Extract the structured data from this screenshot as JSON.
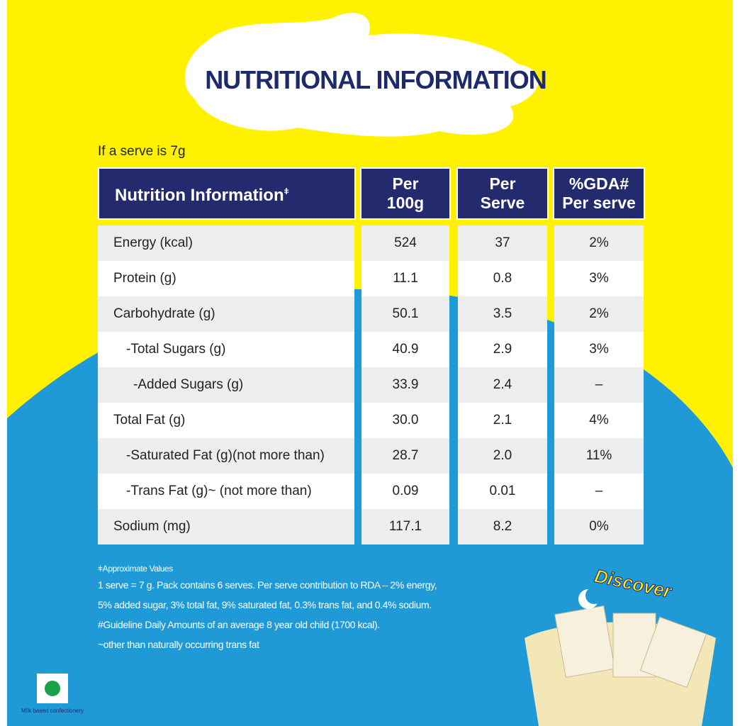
{
  "title": "NUTRITIONAL INFORMATION",
  "serve_note": "If a serve is 7g",
  "table": {
    "header": {
      "nutrient": "Nutrition Information",
      "nutrient_mark": "ǂ",
      "per_100g": [
        "Per",
        "100g"
      ],
      "per_serve": [
        "Per",
        "Serve"
      ],
      "gda": [
        "%GDA#",
        "Per serve"
      ]
    },
    "rows": [
      [
        "Energy (kcal)",
        "524",
        "37",
        "2%"
      ],
      [
        "Protein (g)",
        "11.1",
        "0.8",
        "3%"
      ],
      [
        "Carbohydrate (g)",
        "50.1",
        "3.5",
        "2%"
      ],
      [
        "-Total Sugars (g)",
        "40.9",
        "2.9",
        "3%"
      ],
      [
        "-Added Sugars (g)",
        "33.9",
        "2.4",
        "–"
      ],
      [
        "Total Fat (g)",
        "30.0",
        "2.1",
        "4%"
      ],
      [
        "-Saturated Fat (g)(not more than)",
        "28.7",
        "2.0",
        "11%"
      ],
      [
        "-Trans Fat (g)~ (not more than)",
        "0.09",
        "0.01",
        "–"
      ],
      [
        "Sodium (mg)",
        "117.1",
        "8.2",
        "0%"
      ]
    ]
  },
  "footnotes": [
    "ǂApproximate Values",
    "1 serve = 7 g. Pack contains 6 serves. Per serve contribution to RDA – 2% energy, 5% added sugar, 3% total fat, 9% saturated fat, 0.3% trans fat, and 0.4% sodium.",
    "#Guideline Daily Amounts of an average 8 year old child (1700 kcal).",
    "~other than naturally occurring trans fat"
  ],
  "badge": "Discover",
  "veg_label": "Milk based confectionery"
}
